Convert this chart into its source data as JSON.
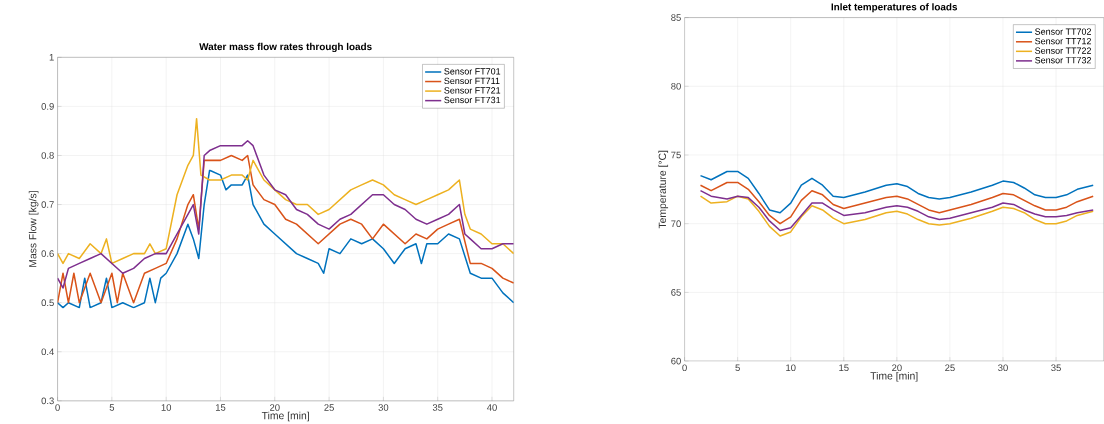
{
  "chart_data": [
    {
      "type": "line",
      "title": "Water mass flow rates through loads",
      "xlabel": "Time [min]",
      "ylabel": "Mass Flow [kg/s]",
      "xlim": [
        0,
        42
      ],
      "ylim": [
        0.3,
        1
      ],
      "xticks": [
        0,
        5,
        10,
        15,
        20,
        25,
        30,
        35,
        40
      ],
      "yticks": [
        0.3,
        0.4,
        0.5,
        0.6,
        0.7,
        0.8,
        0.9,
        1
      ],
      "grid": true,
      "legend": "top right",
      "series": [
        {
          "name": "Sensor FT701",
          "color": "#0072bd",
          "x": [
            0,
            0.5,
            1,
            2,
            2.5,
            3,
            4,
            4.5,
            5,
            6,
            7,
            8,
            8.5,
            9,
            9.5,
            10,
            11,
            12,
            12.5,
            13,
            13.5,
            14,
            15,
            15.5,
            16,
            17,
            17.5,
            18,
            19,
            20,
            21,
            22,
            23,
            24,
            24.5,
            25,
            26,
            27,
            28,
            29,
            30,
            31,
            32,
            33,
            33.5,
            34,
            35,
            36,
            37,
            38,
            39,
            40,
            41,
            42
          ],
          "values": [
            0.5,
            0.49,
            0.5,
            0.49,
            0.55,
            0.49,
            0.5,
            0.55,
            0.49,
            0.5,
            0.49,
            0.5,
            0.55,
            0.5,
            0.55,
            0.56,
            0.6,
            0.66,
            0.63,
            0.59,
            0.7,
            0.77,
            0.76,
            0.73,
            0.74,
            0.74,
            0.76,
            0.7,
            0.66,
            0.64,
            0.62,
            0.6,
            0.59,
            0.58,
            0.56,
            0.61,
            0.6,
            0.63,
            0.62,
            0.63,
            0.61,
            0.58,
            0.61,
            0.62,
            0.58,
            0.62,
            0.62,
            0.64,
            0.63,
            0.56,
            0.55,
            0.55,
            0.52,
            0.5
          ]
        },
        {
          "name": "Sensor FT711",
          "color": "#d95319",
          "x": [
            0,
            0.5,
            1,
            1.5,
            2,
            3,
            4,
            5,
            5.5,
            6,
            7,
            8,
            9,
            10,
            11,
            12,
            12.5,
            13,
            13.5,
            14,
            15,
            16,
            17,
            17.5,
            18,
            19,
            20,
            21,
            22,
            23,
            24,
            25,
            26,
            27,
            28,
            29,
            30,
            31,
            32,
            33,
            34,
            35,
            36,
            37,
            38,
            39,
            40,
            41,
            42
          ],
          "values": [
            0.5,
            0.56,
            0.5,
            0.56,
            0.5,
            0.56,
            0.5,
            0.56,
            0.5,
            0.56,
            0.5,
            0.56,
            0.57,
            0.58,
            0.63,
            0.7,
            0.72,
            0.65,
            0.79,
            0.79,
            0.79,
            0.8,
            0.79,
            0.8,
            0.74,
            0.71,
            0.7,
            0.67,
            0.66,
            0.64,
            0.62,
            0.64,
            0.66,
            0.67,
            0.66,
            0.63,
            0.66,
            0.64,
            0.62,
            0.64,
            0.63,
            0.65,
            0.66,
            0.67,
            0.58,
            0.58,
            0.57,
            0.55,
            0.54
          ]
        },
        {
          "name": "Sensor FT721",
          "color": "#edb120",
          "x": [
            0,
            0.5,
            1,
            2,
            3,
            4,
            4.5,
            5,
            6,
            7,
            8,
            8.5,
            9,
            10,
            11,
            12,
            12.5,
            12.8,
            13.2,
            14,
            15,
            16,
            17,
            17.5,
            18,
            19,
            20,
            21,
            22,
            23,
            24,
            25,
            26,
            27,
            28,
            29,
            30,
            31,
            32,
            33,
            34,
            35,
            36,
            37,
            37.5,
            38,
            39,
            40,
            41,
            42
          ],
          "values": [
            0.6,
            0.58,
            0.6,
            0.59,
            0.62,
            0.6,
            0.63,
            0.58,
            0.59,
            0.6,
            0.6,
            0.62,
            0.6,
            0.61,
            0.72,
            0.78,
            0.8,
            0.875,
            0.76,
            0.75,
            0.75,
            0.76,
            0.76,
            0.75,
            0.79,
            0.75,
            0.73,
            0.71,
            0.7,
            0.7,
            0.68,
            0.69,
            0.71,
            0.73,
            0.74,
            0.75,
            0.74,
            0.72,
            0.71,
            0.7,
            0.71,
            0.72,
            0.73,
            0.75,
            0.68,
            0.65,
            0.64,
            0.62,
            0.62,
            0.6
          ]
        },
        {
          "name": "Sensor FT731",
          "color": "#7e2f8e",
          "x": [
            0,
            0.5,
            1,
            2,
            3,
            4,
            5,
            6,
            7,
            8,
            9,
            10,
            11,
            12,
            12.5,
            13,
            13.5,
            14,
            15,
            16,
            17,
            17.5,
            18,
            19,
            20,
            21,
            22,
            23,
            24,
            25,
            26,
            27,
            28,
            29,
            30,
            31,
            32,
            33,
            34,
            35,
            36,
            37,
            37.5,
            38,
            39,
            40,
            41,
            42
          ],
          "values": [
            0.55,
            0.53,
            0.57,
            0.58,
            0.59,
            0.6,
            0.58,
            0.56,
            0.57,
            0.59,
            0.6,
            0.6,
            0.64,
            0.68,
            0.7,
            0.64,
            0.8,
            0.81,
            0.82,
            0.82,
            0.82,
            0.83,
            0.82,
            0.76,
            0.73,
            0.72,
            0.69,
            0.68,
            0.66,
            0.65,
            0.67,
            0.68,
            0.7,
            0.72,
            0.72,
            0.7,
            0.69,
            0.67,
            0.66,
            0.67,
            0.68,
            0.7,
            0.64,
            0.63,
            0.61,
            0.61,
            0.62,
            0.62
          ]
        }
      ]
    },
    {
      "type": "line",
      "title": "Inlet temperatures of loads",
      "xlabel": "Time [min]",
      "ylabel": "Temperature [°C]",
      "xlim": [
        0,
        39.5
      ],
      "ylim": [
        60,
        85
      ],
      "xticks": [
        0,
        5,
        10,
        15,
        20,
        25,
        30,
        35
      ],
      "yticks": [
        60,
        65,
        70,
        75,
        80,
        85
      ],
      "grid": true,
      "legend": "top right",
      "series": [
        {
          "name": "Sensor TT702",
          "color": "#0072bd",
          "x": [
            1.5,
            2.5,
            4,
            5,
            6,
            7,
            8,
            9,
            10,
            11,
            12,
            13,
            14,
            15,
            17,
            19,
            20,
            21,
            22,
            23,
            24,
            25,
            27,
            29,
            30,
            31,
            32,
            33,
            34,
            35,
            36,
            37,
            38.5
          ],
          "values": [
            73.5,
            73.2,
            73.8,
            73.8,
            73.3,
            72.2,
            71.0,
            70.8,
            71.5,
            72.8,
            73.3,
            72.8,
            72.0,
            71.9,
            72.3,
            72.8,
            72.9,
            72.7,
            72.2,
            71.9,
            71.8,
            71.9,
            72.3,
            72.8,
            73.1,
            73.0,
            72.6,
            72.1,
            71.9,
            71.9,
            72.1,
            72.5,
            72.8
          ]
        },
        {
          "name": "Sensor TT712",
          "color": "#d95319",
          "x": [
            1.5,
            2.5,
            4,
            5,
            6,
            7,
            8,
            9,
            10,
            11,
            12,
            13,
            14,
            15,
            17,
            19,
            20,
            21,
            22,
            23,
            24,
            25,
            27,
            29,
            30,
            31,
            32,
            33,
            34,
            35,
            36,
            37,
            38.5
          ],
          "values": [
            72.8,
            72.4,
            73.0,
            73.0,
            72.5,
            71.6,
            70.6,
            70.0,
            70.5,
            71.7,
            72.4,
            72.1,
            71.4,
            71.1,
            71.5,
            71.9,
            72.0,
            71.8,
            71.4,
            71.0,
            70.8,
            71.0,
            71.4,
            71.9,
            72.2,
            72.1,
            71.7,
            71.3,
            71.0,
            71.0,
            71.2,
            71.6,
            72.0
          ]
        },
        {
          "name": "Sensor TT722",
          "color": "#edb120",
          "x": [
            1.5,
            2.5,
            4,
            5,
            6,
            7,
            8,
            9,
            10,
            11,
            12,
            13,
            14,
            15,
            17,
            19,
            20,
            21,
            22,
            23,
            24,
            25,
            27,
            29,
            30,
            31,
            32,
            33,
            34,
            35,
            36,
            37,
            38.5
          ],
          "values": [
            72.0,
            71.5,
            71.6,
            72.0,
            71.8,
            70.9,
            69.8,
            69.1,
            69.4,
            70.5,
            71.3,
            71.0,
            70.4,
            70.0,
            70.3,
            70.8,
            70.9,
            70.7,
            70.3,
            70.0,
            69.9,
            70.0,
            70.4,
            70.9,
            71.2,
            71.1,
            70.8,
            70.3,
            70.0,
            70.0,
            70.2,
            70.6,
            70.9
          ]
        },
        {
          "name": "Sensor TT732",
          "color": "#7e2f8e",
          "x": [
            1.5,
            2.5,
            4,
            5,
            6,
            7,
            8,
            9,
            10,
            11,
            12,
            13,
            14,
            15,
            17,
            19,
            20,
            21,
            22,
            23,
            24,
            25,
            27,
            29,
            30,
            31,
            32,
            33,
            34,
            35,
            36,
            37,
            38.5
          ],
          "values": [
            72.4,
            72.0,
            71.8,
            72.0,
            71.9,
            71.2,
            70.2,
            69.5,
            69.7,
            70.6,
            71.5,
            71.5,
            71.0,
            70.6,
            70.8,
            71.2,
            71.3,
            71.2,
            70.9,
            70.5,
            70.3,
            70.4,
            70.8,
            71.2,
            71.5,
            71.4,
            71.0,
            70.7,
            70.5,
            70.5,
            70.6,
            70.8,
            71.0
          ]
        }
      ]
    }
  ]
}
